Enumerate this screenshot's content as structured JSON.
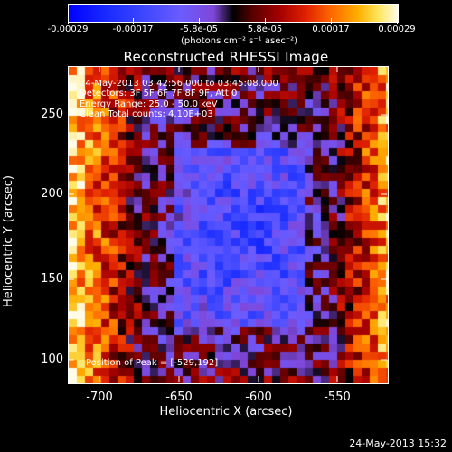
{
  "colorbar": {
    "ticks": [
      "-0.00029",
      "-0.00017",
      "-5.8e-05",
      "5.8e-05",
      "0.00017",
      "0.00029"
    ],
    "unit": "(photons cm⁻² s⁻¹ asec⁻²)"
  },
  "title": "Reconstructed RHESSI Image",
  "info_lines": [
    "24-May-2013 03:42:56.000 to 03:45:08.000",
    "Detectors: 3F 5F 6F 7F 8F 9F, Att 0",
    "Energy Range: 25.0 - 50.0 keV",
    "Clean    Total counts: 4.10E+03"
  ],
  "peak_text": "Position of Peak = [-529,192]",
  "axes": {
    "xlabel": "Heliocentric X (arcsec)",
    "ylabel": "Heliocentric Y (arcsec)",
    "xticks": [
      "-700",
      "-650",
      "-600",
      "-550"
    ],
    "yticks": [
      "250",
      "200",
      "150",
      "100"
    ]
  },
  "footer_date": "24-May-2013 15:32",
  "colors": {
    "background": "#000000",
    "foreground": "#ffffff"
  }
}
